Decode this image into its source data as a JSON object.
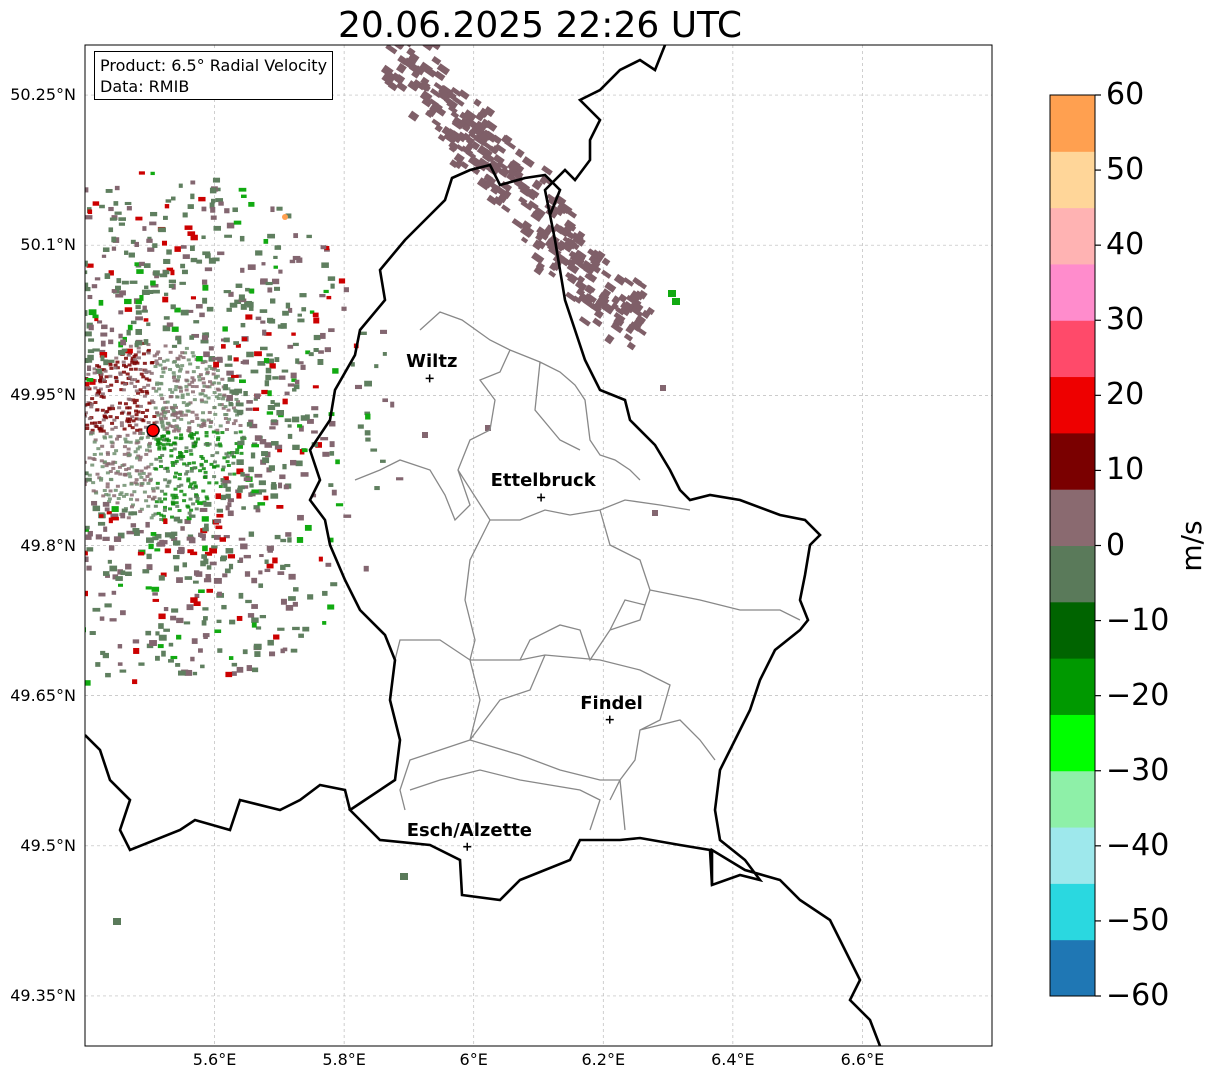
{
  "title": "20.06.2025 22:26 UTC",
  "product_box": {
    "product_line": "Product: 6.5° Radial Velocity",
    "data_line": "Data: RMIB"
  },
  "map": {
    "lon_range": [
      5.4,
      6.8
    ],
    "lat_range": [
      49.3,
      50.3
    ],
    "lat_ticks": [
      "50.25°N",
      "50.1°N",
      "49.95°N",
      "49.8°N",
      "49.65°N",
      "49.5°N",
      "49.35°N"
    ],
    "lon_ticks": [
      "5.6°E",
      "5.8°E",
      "6°E",
      "6.2°E",
      "6.4°E",
      "6.6°E"
    ],
    "gridlines": true,
    "cities": [
      {
        "name": "Wiltz",
        "lon": 5.932,
        "lat": 49.967
      },
      {
        "name": "Ettelbruck",
        "lon": 6.104,
        "lat": 49.848
      },
      {
        "name": "Findel",
        "lon": 6.21,
        "lat": 49.626
      },
      {
        "name": "Esch/Alzette",
        "lon": 5.99,
        "lat": 49.499
      }
    ],
    "radar_site": {
      "lon": 5.505,
      "lat": 49.915,
      "color": "#ff0000"
    }
  },
  "colorbar": {
    "unit": "m/s",
    "min": -60,
    "max": 60,
    "tick_labels": [
      "60",
      "50",
      "40",
      "30",
      "20",
      "10",
      "0",
      "−10",
      "−20",
      "−30",
      "−40",
      "−50",
      "−60"
    ],
    "colors": [
      "#1f77b4",
      "#2ad8e0",
      "#9ee8ec",
      "#8ef0a8",
      "#00ff00",
      "#009900",
      "#006400",
      "#5a7a5a",
      "#8a6a70",
      "#7a0000",
      "#ee0000",
      "#ff4a6a",
      "#ff8ccc",
      "#ffb3b3",
      "#ffd699",
      "#ffa050"
    ]
  }
}
